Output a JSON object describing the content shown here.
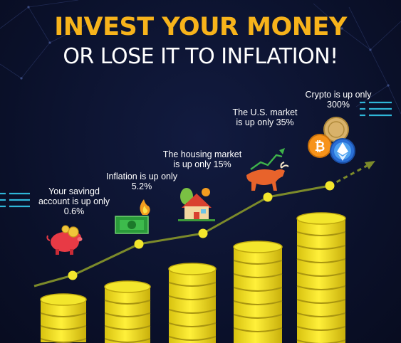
{
  "headline": {
    "line1": "INVEST YOUR MONEY",
    "line2": "OR LOSE IT TO INFLATION!"
  },
  "steps": [
    {
      "caption": "Your savingd account is up only 0.6%",
      "icon": "piggy-bank-icon"
    },
    {
      "caption": "Inflation is up only 5.2%",
      "icon": "burning-money-icon"
    },
    {
      "caption": "The housing market is up only 15%",
      "icon": "house-icon"
    },
    {
      "caption": "The U.S. market is up only 35%",
      "icon": "bull-icon"
    },
    {
      "caption": "Crypto is up only 300%",
      "icon": "crypto-coins-icon"
    }
  ],
  "colors": {
    "background": "#0b1230",
    "headline_accent": "#f7b31b",
    "coin": "#f0e11c",
    "trend_line": "#7c8a2a",
    "dash_accent": "#2fb6d8"
  }
}
